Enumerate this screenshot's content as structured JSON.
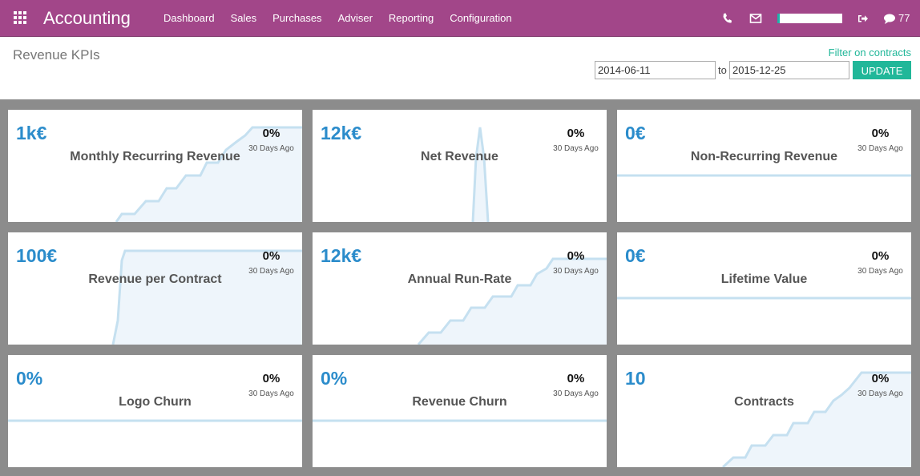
{
  "app": {
    "title": "Accounting",
    "apps_icon": "grid-icon"
  },
  "menu": [
    "Dashboard",
    "Sales",
    "Purchases",
    "Adviser",
    "Reporting",
    "Configuration"
  ],
  "systray": {
    "phone_icon": "phone-icon",
    "mail_icon": "mail-icon",
    "logout_icon": "logout-icon",
    "chat_icon": "chat-icon",
    "message_count": "77"
  },
  "page": {
    "title": "Revenue KPIs",
    "filter_link": "Filter on contracts",
    "start_date": "2014-06-11",
    "to_label": "to",
    "end_date": "2015-12-25",
    "update_label": "UPDATE"
  },
  "colors": {
    "brand": "#a24689",
    "accent": "#21b799",
    "kpi_value": "#2b8ccb",
    "spark_line": "#c5e0f0",
    "spark_fill": "#eef5fb"
  },
  "cards": [
    {
      "value": "1k€",
      "title": "Monthly Recurring Revenue",
      "pct": "0%",
      "ago": "30 Days Ago",
      "trend": "rising-steps"
    },
    {
      "value": "12k€",
      "title": "Net Revenue",
      "pct": "0%",
      "ago": "30 Days Ago",
      "trend": "spike"
    },
    {
      "value": "0€",
      "title": "Non-Recurring Revenue",
      "pct": "0%",
      "ago": "30 Days Ago",
      "trend": "flat"
    },
    {
      "value": "100€",
      "title": "Revenue per Contract",
      "pct": "0%",
      "ago": "30 Days Ago",
      "trend": "step-up"
    },
    {
      "value": "12k€",
      "title": "Annual Run-Rate",
      "pct": "0%",
      "ago": "30 Days Ago",
      "trend": "rising-steps"
    },
    {
      "value": "0€",
      "title": "Lifetime Value",
      "pct": "0%",
      "ago": "30 Days Ago",
      "trend": "flat"
    },
    {
      "value": "0%",
      "title": "Logo Churn",
      "pct": "0%",
      "ago": "30 Days Ago",
      "trend": "flat"
    },
    {
      "value": "0%",
      "title": "Revenue Churn",
      "pct": "0%",
      "ago": "30 Days Ago",
      "trend": "flat"
    },
    {
      "value": "10",
      "title": "Contracts",
      "pct": "0%",
      "ago": "30 Days Ago",
      "trend": "rising-steps"
    }
  ]
}
